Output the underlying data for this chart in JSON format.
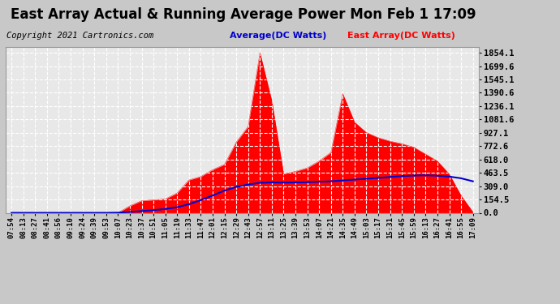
{
  "title": "East Array Actual & Running Average Power Mon Feb 1 17:09",
  "copyright": "Copyright 2021 Cartronics.com",
  "legend_avg": "Average(DC Watts)",
  "legend_east": "East Array(DC Watts)",
  "y_ticks": [
    0.0,
    154.5,
    309.0,
    463.5,
    618.0,
    772.6,
    927.1,
    1081.6,
    1236.1,
    1390.6,
    1545.1,
    1699.6,
    1854.1
  ],
  "ylim": [
    0,
    1920
  ],
  "bg_color": "#c8c8c8",
  "plot_bg": "#e8e8e8",
  "grid_color": "#ffffff",
  "bar_color": "#ff0000",
  "avg_color": "#0000cc",
  "title_fontsize": 12,
  "copyright_fontsize": 7.5,
  "x_labels": [
    "07:54",
    "08:13",
    "08:27",
    "08:41",
    "08:56",
    "09:10",
    "09:24",
    "09:39",
    "09:53",
    "10:07",
    "10:23",
    "10:37",
    "10:51",
    "11:05",
    "11:19",
    "11:33",
    "11:47",
    "12:01",
    "12:15",
    "12:29",
    "12:43",
    "12:57",
    "13:11",
    "13:25",
    "13:39",
    "13:53",
    "14:07",
    "14:21",
    "14:35",
    "14:49",
    "15:03",
    "15:17",
    "15:31",
    "15:45",
    "15:59",
    "16:13",
    "16:27",
    "16:41",
    "16:55",
    "17:09"
  ],
  "east_array": [
    0,
    0,
    0,
    0,
    0,
    0,
    0,
    0,
    0,
    0,
    80,
    140,
    150,
    160,
    230,
    380,
    420,
    500,
    560,
    820,
    1000,
    1854,
    1300,
    450,
    480,
    520,
    600,
    700,
    1380,
    1050,
    930,
    870,
    830,
    800,
    760,
    680,
    600,
    450,
    200,
    10
  ],
  "avg_data": [
    0,
    0,
    0,
    0,
    0,
    0,
    0,
    0,
    0,
    2,
    10,
    20,
    30,
    45,
    65,
    100,
    148,
    200,
    258,
    300,
    328,
    348,
    352,
    350,
    352,
    355,
    360,
    365,
    375,
    385,
    395,
    405,
    415,
    425,
    432,
    435,
    430,
    420,
    400,
    365
  ]
}
